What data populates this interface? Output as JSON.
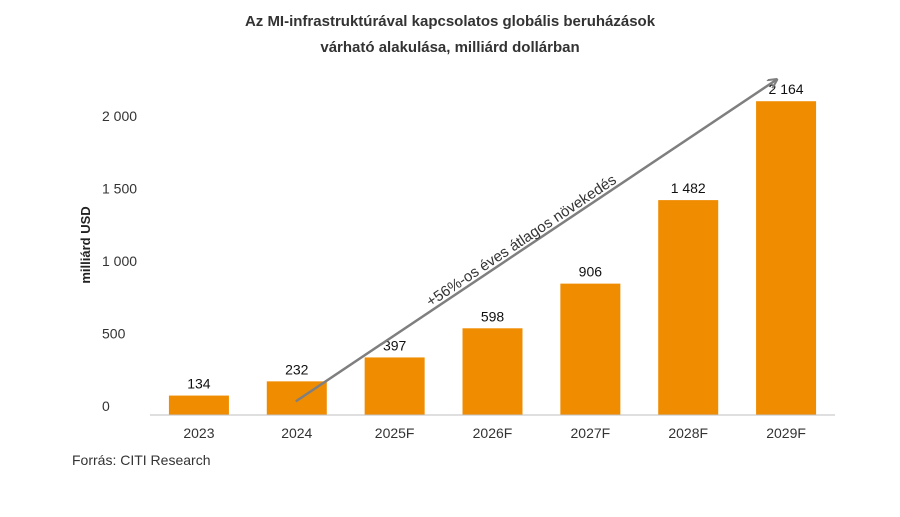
{
  "chart_data": {
    "type": "bar",
    "title_lines": [
      "Az MI-infrastruktúrával kapcsolatos globális beruházások",
      "várható alakulása, milliárd dollárban"
    ],
    "ylabel": "milliárd USD",
    "xlabel": "",
    "categories": [
      "2023",
      "2024",
      "2025F",
      "2026F",
      "2027F",
      "2028F",
      "2029F"
    ],
    "values": [
      134,
      232,
      397,
      598,
      906,
      1482,
      2164
    ],
    "value_labels": [
      "134",
      "232",
      "397",
      "598",
      "906",
      "1 482",
      "2 164"
    ],
    "ylim": [
      0,
      2000
    ],
    "yticks": [
      0,
      500,
      1000,
      1500,
      2000
    ],
    "ytick_labels": [
      "0",
      "500",
      "1 000",
      "1 500",
      "2 000"
    ],
    "grid": false,
    "legend": "none",
    "annotation": "+56%-os éves átlagos növekedés",
    "colors": {
      "bar": "#F08C00",
      "arrow": "#7F7F7F",
      "text": "#333333",
      "axis": "#BFBFBF"
    }
  },
  "footer": {
    "source": "Forrás: CITI Research"
  }
}
